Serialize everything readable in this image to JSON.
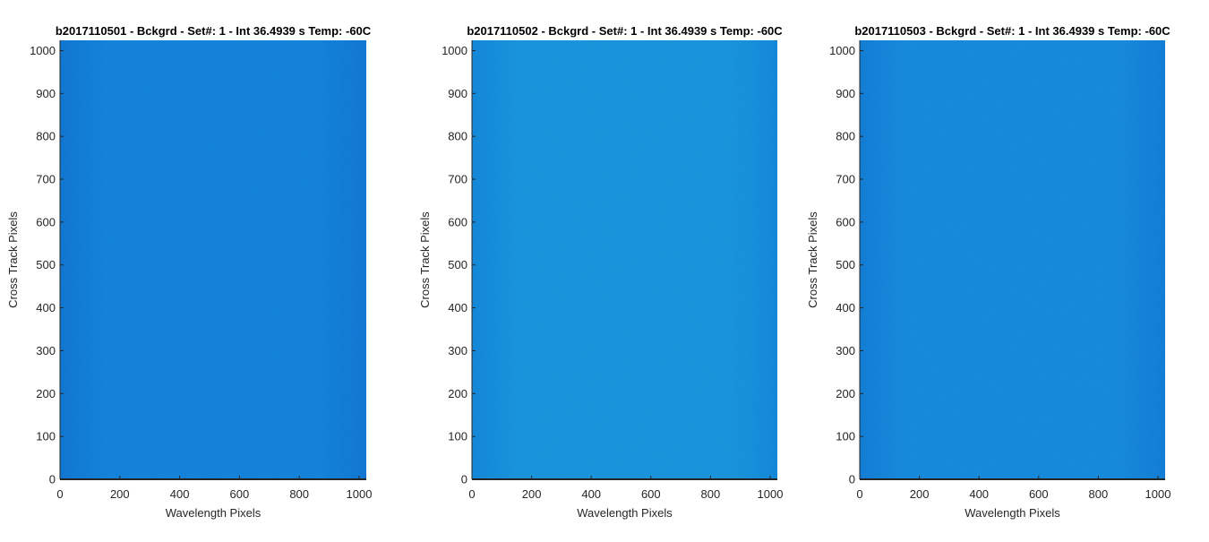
{
  "chart_data": [
    {
      "type": "heatmap",
      "title": "b2017110501 - Bckgrd - Set#: 1 - Int 36.4939 s Temp: -60C",
      "xlabel": "Wavelength Pixels",
      "ylabel": "Cross Track Pixels",
      "xlim": [
        0,
        1024
      ],
      "ylim": [
        0,
        1024
      ],
      "xticks": [
        0,
        200,
        400,
        600,
        800,
        1000
      ],
      "yticks": [
        0,
        100,
        200,
        300,
        400,
        500,
        600,
        700,
        800,
        900,
        1000
      ],
      "colors": {
        "base": "#0e7cd6",
        "edge": "#0b6fcd"
      },
      "grid": false
    },
    {
      "type": "heatmap",
      "title": "b2017110502 - Bckgrd - Set#: 1 - Int 36.4939 s Temp: -60C",
      "xlabel": "Wavelength Pixels",
      "ylabel": "Cross Track Pixels",
      "xlim": [
        0,
        1024
      ],
      "ylim": [
        0,
        1024
      ],
      "xticks": [
        0,
        200,
        400,
        600,
        800,
        1000
      ],
      "yticks": [
        0,
        100,
        200,
        300,
        400,
        500,
        600,
        700,
        800,
        900,
        1000
      ],
      "colors": {
        "base": "#148fd8",
        "edge": "#0e82d5"
      },
      "grid": false
    },
    {
      "type": "heatmap",
      "title": "b2017110503 - Bckgrd - Set#: 1 - Int 36.4939 s Temp: -60C",
      "xlabel": "Wavelength Pixels",
      "ylabel": "Cross Track Pixels",
      "xlim": [
        0,
        1024
      ],
      "ylim": [
        0,
        1024
      ],
      "xticks": [
        0,
        200,
        400,
        600,
        800,
        1000
      ],
      "yticks": [
        0,
        100,
        200,
        300,
        400,
        500,
        600,
        700,
        800,
        900,
        1000
      ],
      "colors": {
        "base": "#1284d8",
        "edge": "#0d76d1"
      },
      "grid": false
    }
  ]
}
